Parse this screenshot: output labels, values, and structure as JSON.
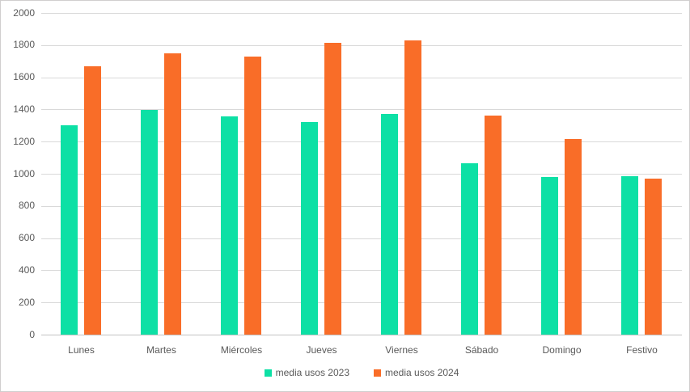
{
  "chart_data": {
    "type": "bar",
    "title": "",
    "categories": [
      "Lunes",
      "Martes",
      "Miércoles",
      "Jueves",
      "Viernes",
      "Sábado",
      "Domingo",
      "Festivo"
    ],
    "series": [
      {
        "name": "media usos 2023",
        "color": "#0de0a5",
        "values": [
          1300,
          1395,
          1355,
          1320,
          1370,
          1065,
          980,
          985
        ]
      },
      {
        "name": "media usos 2024",
        "color": "#f96d28",
        "values": [
          1670,
          1750,
          1730,
          1815,
          1830,
          1360,
          1215,
          970
        ]
      }
    ],
    "xlabel": "",
    "ylabel": "",
    "ylim": [
      0,
      2000
    ],
    "yticks": [
      0,
      200,
      400,
      600,
      800,
      1000,
      1200,
      1400,
      1600,
      1800,
      2000
    ],
    "grid": true,
    "legend_position": "bottom",
    "colors": {
      "gridline": "#d9d9d9",
      "axis_line": "#c2c2c2",
      "label_text": "#595959",
      "frame_border": "#d0cece",
      "background": "#ffffff"
    }
  }
}
